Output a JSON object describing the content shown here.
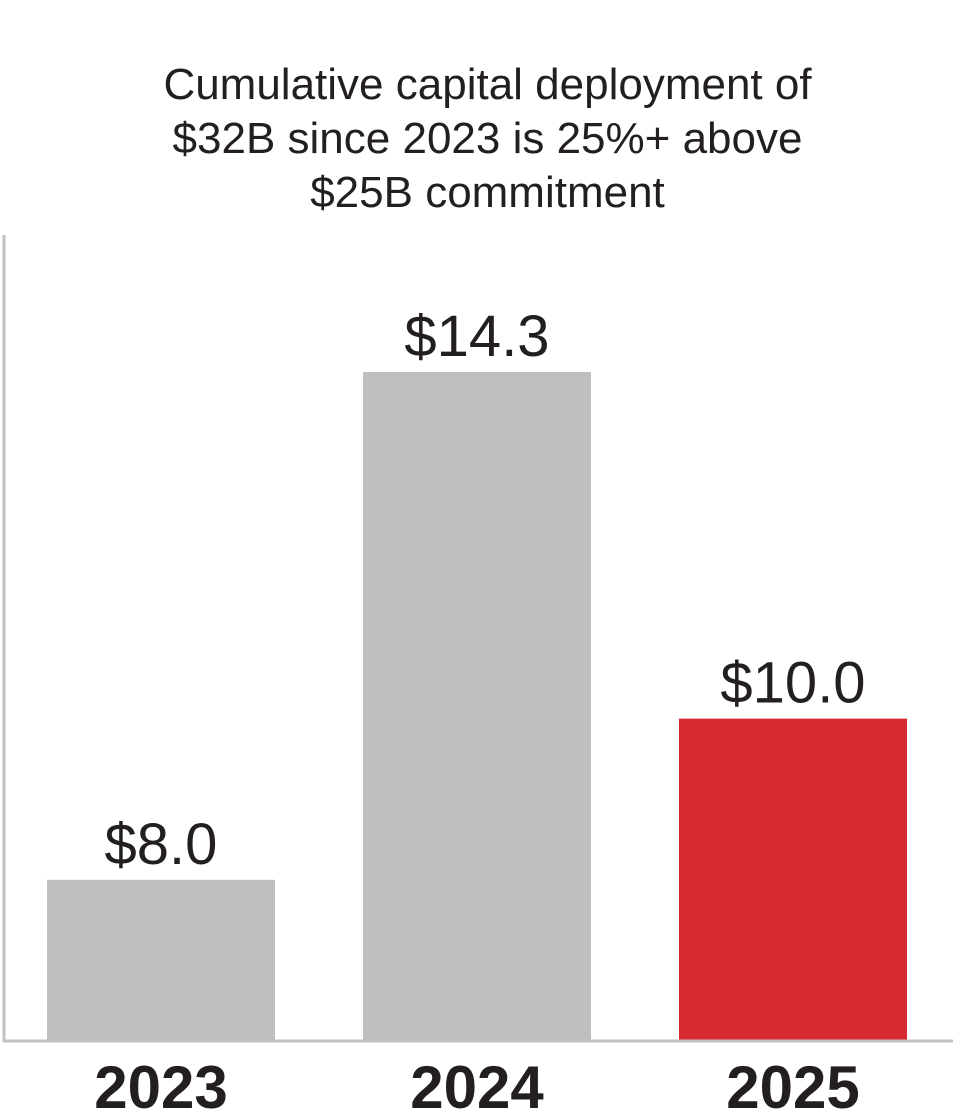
{
  "chart_data": {
    "type": "bar",
    "title_lines": [
      "Cumulative capital deployment of",
      "$32B since 2023 is 25%+ above",
      "$25B commitment"
    ],
    "categories": [
      "2023",
      "2024",
      "2025"
    ],
    "values": [
      8.0,
      14.3,
      10.0
    ],
    "data_labels": [
      "$8.0",
      "$14.3",
      "$10.0"
    ],
    "colors": [
      "#bebfc1",
      "#bebfc1",
      "#d52a30"
    ],
    "axis_color": "#bfc0c2",
    "xlabel": "",
    "ylabel": "",
    "ylim": [
      6,
      16
    ],
    "grid": false,
    "legend": "none"
  }
}
